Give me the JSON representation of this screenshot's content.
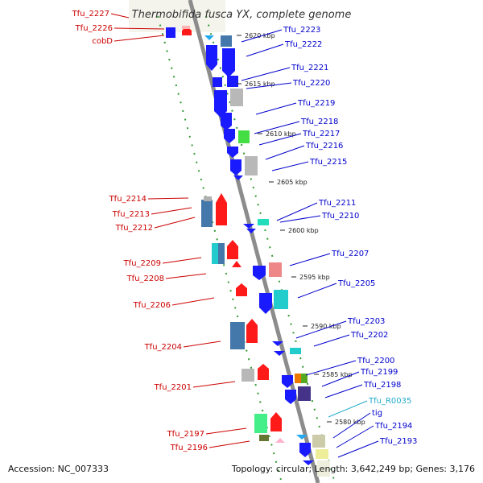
{
  "title": "Thermobifida fusca YX, complete genome",
  "accession": "Accession: NC_007333",
  "topology": "Topology: circular; Length: 3,642,249 bp; Genes: 3,176",
  "colors": {
    "forward_label": "#0000cc",
    "reverse_label": "#cc0000",
    "rna_label": "#22aacc",
    "backbone": "#8c8c8c",
    "guide": "#339933"
  },
  "ticks": [
    {
      "label": "2620 kbp"
    },
    {
      "label": "2615 kbp"
    },
    {
      "label": "2610 kbp"
    },
    {
      "label": "2605 kbp"
    },
    {
      "label": "2600 kbp"
    },
    {
      "label": "2595 kbp"
    },
    {
      "label": "2590 kbp"
    },
    {
      "label": "2585 kbp"
    },
    {
      "label": "2580 kbp"
    }
  ],
  "genes_right": [
    {
      "label": "Tfu_2223",
      "type": "forward"
    },
    {
      "label": "Tfu_2222",
      "type": "forward"
    },
    {
      "label": "Tfu_2221",
      "type": "forward"
    },
    {
      "label": "Tfu_2220",
      "type": "forward"
    },
    {
      "label": "Tfu_2219",
      "type": "forward"
    },
    {
      "label": "Tfu_2218",
      "type": "forward"
    },
    {
      "label": "Tfu_2217",
      "type": "forward"
    },
    {
      "label": "Tfu_2216",
      "type": "forward"
    },
    {
      "label": "Tfu_2215",
      "type": "forward"
    },
    {
      "label": "Tfu_2211",
      "type": "forward"
    },
    {
      "label": "Tfu_2210",
      "type": "forward"
    },
    {
      "label": "Tfu_2207",
      "type": "forward"
    },
    {
      "label": "Tfu_2205",
      "type": "forward"
    },
    {
      "label": "Tfu_2203",
      "type": "forward"
    },
    {
      "label": "Tfu_2202",
      "type": "forward"
    },
    {
      "label": "Tfu_2200",
      "type": "forward"
    },
    {
      "label": "Tfu_2199",
      "type": "forward"
    },
    {
      "label": "Tfu_2198",
      "type": "forward"
    },
    {
      "label": "Tfu_R0035",
      "type": "rna"
    },
    {
      "label": "tig",
      "type": "forward"
    },
    {
      "label": "Tfu_2194",
      "type": "forward"
    },
    {
      "label": "Tfu_2193",
      "type": "forward"
    }
  ],
  "genes_left": [
    {
      "label": "Tfu_2227",
      "type": "reverse"
    },
    {
      "label": "Tfu_2226",
      "type": "reverse"
    },
    {
      "label": "cobD",
      "type": "reverse"
    },
    {
      "label": "Tfu_2214",
      "type": "reverse"
    },
    {
      "label": "Tfu_2213",
      "type": "reverse"
    },
    {
      "label": "Tfu_2212",
      "type": "reverse"
    },
    {
      "label": "Tfu_2209",
      "type": "reverse"
    },
    {
      "label": "Tfu_2208",
      "type": "reverse"
    },
    {
      "label": "Tfu_2206",
      "type": "reverse"
    },
    {
      "label": "Tfu_2204",
      "type": "reverse"
    },
    {
      "label": "Tfu_2201",
      "type": "reverse"
    },
    {
      "label": "Tfu_2197",
      "type": "reverse"
    },
    {
      "label": "Tfu_2196",
      "type": "reverse"
    }
  ]
}
